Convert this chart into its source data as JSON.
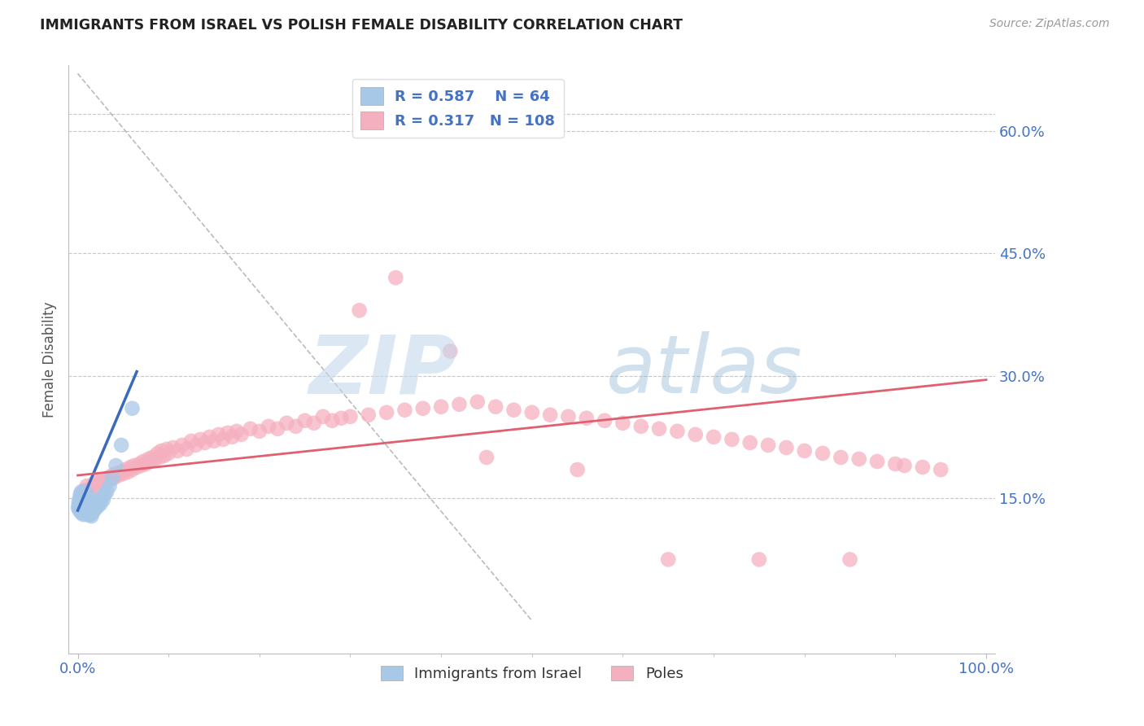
{
  "title": "IMMIGRANTS FROM ISRAEL VS POLISH FEMALE DISABILITY CORRELATION CHART",
  "source": "Source: ZipAtlas.com",
  "ylabel": "Female Disability",
  "xlim": [
    -0.01,
    1.01
  ],
  "ylim": [
    -0.04,
    0.68
  ],
  "yticks": [
    0.15,
    0.3,
    0.45,
    0.6
  ],
  "ytick_labels": [
    "15.0%",
    "30.0%",
    "45.0%",
    "60.0%"
  ],
  "xtick_left_label": "0.0%",
  "xtick_right_label": "100.0%",
  "legend_r_israel": "0.587",
  "legend_n_israel": "64",
  "legend_r_poles": "0.317",
  "legend_n_poles": "108",
  "israel_color": "#a8c8e8",
  "poles_color": "#f5b0c0",
  "israel_line_color": "#3a6abf",
  "poles_line_color": "#e06070",
  "background_color": "#ffffff",
  "grid_color": "#c8c8c8",
  "title_color": "#222222",
  "axis_label_color": "#555555",
  "tick_label_color": "#4472c4",
  "watermark_zip": "ZIP",
  "watermark_atlas": "atlas",
  "israel_line_x0": 0.0,
  "israel_line_y0": 0.135,
  "israel_line_x1": 0.065,
  "israel_line_y1": 0.305,
  "poles_line_x0": 0.0,
  "poles_line_y0": 0.178,
  "poles_line_x1": 1.0,
  "poles_line_y1": 0.295,
  "dash_line_x0": 0.0,
  "dash_line_y0": 0.67,
  "dash_line_x1": 0.5,
  "dash_line_y1": 0.0,
  "israel_scatter_x": [
    0.0005,
    0.001,
    0.001,
    0.002,
    0.002,
    0.002,
    0.003,
    0.003,
    0.003,
    0.003,
    0.004,
    0.004,
    0.004,
    0.004,
    0.004,
    0.005,
    0.005,
    0.005,
    0.006,
    0.006,
    0.006,
    0.006,
    0.007,
    0.007,
    0.007,
    0.007,
    0.008,
    0.008,
    0.008,
    0.009,
    0.009,
    0.009,
    0.01,
    0.01,
    0.01,
    0.01,
    0.011,
    0.011,
    0.012,
    0.012,
    0.013,
    0.013,
    0.014,
    0.014,
    0.015,
    0.015,
    0.016,
    0.017,
    0.018,
    0.019,
    0.02,
    0.021,
    0.022,
    0.023,
    0.025,
    0.026,
    0.028,
    0.03,
    0.032,
    0.035,
    0.038,
    0.042,
    0.048,
    0.06
  ],
  "israel_scatter_y": [
    0.138,
    0.14,
    0.145,
    0.135,
    0.142,
    0.15,
    0.138,
    0.143,
    0.148,
    0.155,
    0.132,
    0.138,
    0.143,
    0.15,
    0.158,
    0.136,
    0.142,
    0.148,
    0.13,
    0.138,
    0.145,
    0.152,
    0.135,
    0.142,
    0.15,
    0.158,
    0.133,
    0.14,
    0.148,
    0.132,
    0.14,
    0.15,
    0.13,
    0.138,
    0.145,
    0.155,
    0.135,
    0.143,
    0.133,
    0.142,
    0.13,
    0.14,
    0.13,
    0.142,
    0.128,
    0.14,
    0.132,
    0.138,
    0.135,
    0.14,
    0.138,
    0.145,
    0.14,
    0.148,
    0.143,
    0.15,
    0.148,
    0.155,
    0.158,
    0.165,
    0.175,
    0.19,
    0.215,
    0.26
  ],
  "poles_scatter_x": [
    0.005,
    0.008,
    0.01,
    0.012,
    0.015,
    0.018,
    0.02,
    0.022,
    0.025,
    0.028,
    0.03,
    0.033,
    0.035,
    0.038,
    0.04,
    0.042,
    0.045,
    0.048,
    0.05,
    0.052,
    0.055,
    0.058,
    0.06,
    0.062,
    0.065,
    0.068,
    0.07,
    0.072,
    0.075,
    0.078,
    0.08,
    0.082,
    0.085,
    0.088,
    0.09,
    0.092,
    0.095,
    0.098,
    0.1,
    0.105,
    0.11,
    0.115,
    0.12,
    0.125,
    0.13,
    0.135,
    0.14,
    0.145,
    0.15,
    0.155,
    0.16,
    0.165,
    0.17,
    0.175,
    0.18,
    0.19,
    0.2,
    0.21,
    0.22,
    0.23,
    0.24,
    0.25,
    0.26,
    0.27,
    0.28,
    0.29,
    0.3,
    0.32,
    0.34,
    0.36,
    0.38,
    0.4,
    0.42,
    0.44,
    0.46,
    0.48,
    0.5,
    0.52,
    0.54,
    0.56,
    0.58,
    0.6,
    0.62,
    0.64,
    0.66,
    0.68,
    0.7,
    0.72,
    0.74,
    0.76,
    0.78,
    0.8,
    0.82,
    0.84,
    0.86,
    0.88,
    0.9,
    0.91,
    0.93,
    0.95,
    0.35,
    0.41,
    0.31,
    0.45,
    0.55,
    0.65,
    0.75,
    0.85
  ],
  "poles_scatter_y": [
    0.155,
    0.16,
    0.165,
    0.158,
    0.162,
    0.168,
    0.17,
    0.165,
    0.17,
    0.172,
    0.168,
    0.175,
    0.172,
    0.178,
    0.175,
    0.18,
    0.178,
    0.182,
    0.18,
    0.185,
    0.182,
    0.188,
    0.185,
    0.19,
    0.188,
    0.192,
    0.19,
    0.195,
    0.192,
    0.198,
    0.195,
    0.2,
    0.198,
    0.205,
    0.2,
    0.208,
    0.202,
    0.21,
    0.205,
    0.212,
    0.208,
    0.215,
    0.21,
    0.22,
    0.215,
    0.222,
    0.218,
    0.225,
    0.22,
    0.228,
    0.222,
    0.23,
    0.225,
    0.232,
    0.228,
    0.235,
    0.232,
    0.238,
    0.235,
    0.242,
    0.238,
    0.245,
    0.242,
    0.25,
    0.245,
    0.248,
    0.25,
    0.252,
    0.255,
    0.258,
    0.26,
    0.262,
    0.265,
    0.268,
    0.262,
    0.258,
    0.255,
    0.252,
    0.25,
    0.248,
    0.245,
    0.242,
    0.238,
    0.235,
    0.232,
    0.228,
    0.225,
    0.222,
    0.218,
    0.215,
    0.212,
    0.208,
    0.205,
    0.2,
    0.198,
    0.195,
    0.192,
    0.19,
    0.188,
    0.185,
    0.42,
    0.33,
    0.38,
    0.2,
    0.185,
    0.075,
    0.075,
    0.075
  ]
}
